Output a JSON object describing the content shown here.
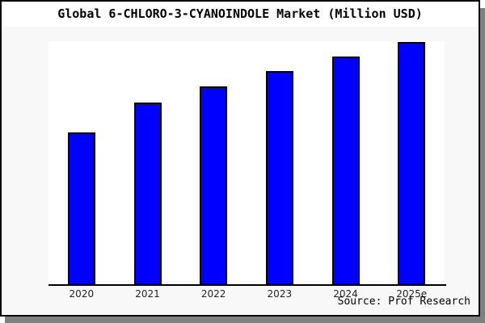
{
  "chart_data": {
    "type": "bar",
    "title": "Global 6-CHLORO-3-CYANOINDOLE Market (Million USD)",
    "categories": [
      "2020",
      "2021",
      "2022",
      "2023",
      "2024",
      "2025e"
    ],
    "values": [
      62.8,
      75.1,
      81.7,
      88.0,
      94.0,
      100.0
    ],
    "values_are_relative": true,
    "xlabel": "",
    "ylabel": "",
    "ylim": [
      0,
      100
    ],
    "grid": false,
    "legend": null,
    "bar_color": "#0000ff",
    "bar_border_color": "#000000",
    "figure_background": "#f8f8f8",
    "plot_background": "#ffffff",
    "source": "Source: Prof Research"
  }
}
